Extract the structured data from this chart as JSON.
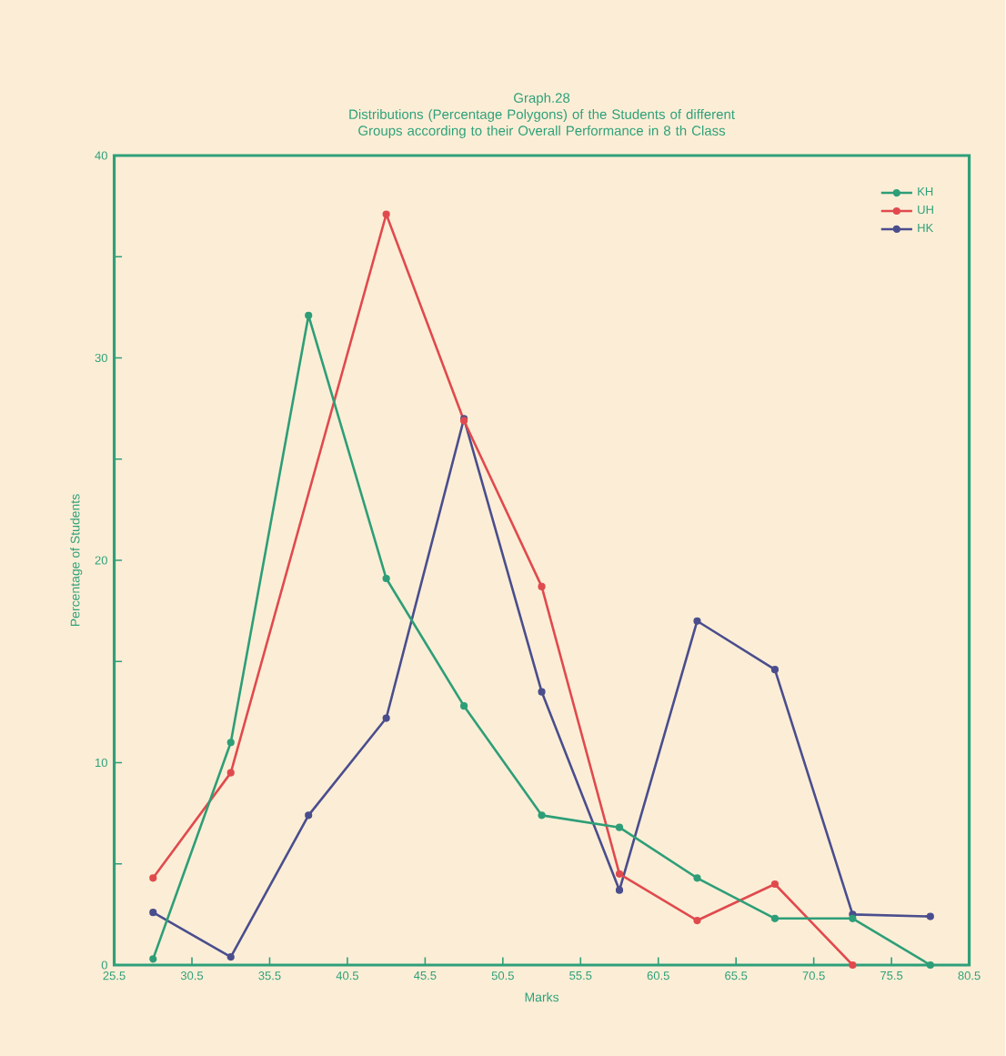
{
  "chart_data": {
    "type": "line",
    "title": "Graph.28",
    "subtitle": "Distributions (Percentage Polygons) of the Students of different Groups according to their Overall Performance in 8 th Class",
    "xlabel": "Marks",
    "ylabel": "Percentage of Students",
    "x": [
      28,
      33,
      38,
      43,
      48,
      53,
      58,
      63,
      68,
      73,
      78
    ],
    "xlim": [
      25.5,
      80.5
    ],
    "xticks": [
      25.5,
      30.5,
      35.5,
      40.5,
      45.5,
      50.5,
      55.5,
      60.5,
      65.5,
      70.5,
      75.5,
      80.5
    ],
    "ylim": [
      0,
      40
    ],
    "yticks": [
      0,
      {
        "value": 5,
        "label": null
      },
      10,
      {
        "value": 15,
        "label": null
      },
      20,
      {
        "value": 25,
        "label": null
      },
      30,
      {
        "value": 35,
        "label": null
      },
      40
    ],
    "series": [
      {
        "name": "KH",
        "color": "#2e9e78",
        "values": [
          0.3,
          11.0,
          32.1,
          19.1,
          12.8,
          7.4,
          6.8,
          4.3,
          2.3,
          2.3,
          0
        ]
      },
      {
        "name": "UH",
        "color": "#e04a4e",
        "x": [
          28,
          33,
          43,
          48,
          53,
          58,
          63,
          68,
          73
        ],
        "values": [
          4.3,
          9.5,
          37.1,
          26.9,
          18.7,
          4.5,
          2.2,
          4.0,
          0
        ]
      },
      {
        "name": "HK",
        "color": "#4a4e8e",
        "values": [
          2.6,
          0.4,
          7.4,
          12.2,
          27.0,
          13.5,
          3.7,
          17.0,
          14.6,
          2.5,
          2.4
        ]
      }
    ],
    "marker": "circle",
    "legend": "top right"
  }
}
